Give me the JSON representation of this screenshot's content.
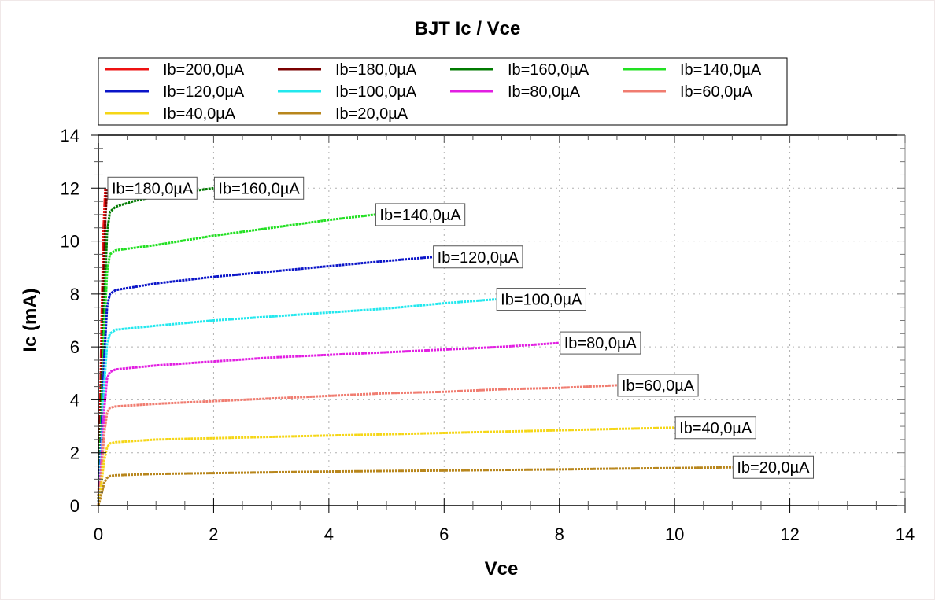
{
  "chart_data": {
    "type": "line",
    "title": "BJT Ic / Vce",
    "xlabel": "Vce",
    "ylabel": "Ic (mA)",
    "xlim": [
      0,
      14
    ],
    "ylim": [
      0,
      14
    ],
    "xticks": [
      0,
      2,
      4,
      6,
      8,
      10,
      12,
      14
    ],
    "yticks": [
      0,
      2,
      4,
      6,
      8,
      10,
      12,
      14
    ],
    "grid": true,
    "legend_placement": "top",
    "series": [
      {
        "name": "Ib=200,0µA",
        "color": "#ee1111",
        "annotation": "",
        "x": [
          0,
          0.03,
          0.06,
          0.09,
          0.12
        ],
        "y": [
          0,
          3.5,
          7.5,
          10.5,
          12.0
        ]
      },
      {
        "name": "Ib=180,0µA",
        "color": "#7a0000",
        "annotation": "Ib=180,0µA",
        "x": [
          0,
          0.04,
          0.08,
          0.12,
          0.15
        ],
        "y": [
          0,
          3.5,
          7.5,
          10.8,
          12.0
        ]
      },
      {
        "name": "Ib=160,0µA",
        "color": "#007a00",
        "annotation": "Ib=160,0µA",
        "x": [
          0,
          0.05,
          0.1,
          0.15,
          0.2,
          0.3,
          0.6,
          1.0,
          1.5,
          2.0
        ],
        "y": [
          0,
          3.5,
          7.5,
          10.3,
          11.1,
          11.3,
          11.5,
          11.7,
          11.85,
          12.0
        ]
      },
      {
        "name": "Ib=140,0µA",
        "color": "#22e022",
        "annotation": "Ib=140,0µA",
        "x": [
          0,
          0.05,
          0.1,
          0.15,
          0.2,
          0.3,
          1.0,
          2.0,
          3.0,
          4.0,
          4.8
        ],
        "y": [
          0,
          3.0,
          6.5,
          8.8,
          9.5,
          9.65,
          9.85,
          10.2,
          10.5,
          10.8,
          11.0
        ]
      },
      {
        "name": "Ib=120,0µA",
        "color": "#0a14c8",
        "annotation": "Ib=120,0µA",
        "x": [
          0,
          0.05,
          0.1,
          0.15,
          0.2,
          0.3,
          1.0,
          2.0,
          3.0,
          4.0,
          5.0,
          5.8
        ],
        "y": [
          0,
          2.5,
          5.5,
          7.5,
          8.0,
          8.15,
          8.4,
          8.65,
          8.85,
          9.05,
          9.25,
          9.4
        ]
      },
      {
        "name": "Ib=100,0µA",
        "color": "#22e8ee",
        "annotation": "Ib=100,0µA",
        "x": [
          0,
          0.05,
          0.1,
          0.15,
          0.2,
          0.3,
          1.0,
          2.0,
          3.0,
          4.0,
          5.0,
          6.0,
          6.9
        ],
        "y": [
          0,
          2.0,
          4.5,
          6.1,
          6.5,
          6.65,
          6.8,
          7.0,
          7.15,
          7.3,
          7.45,
          7.65,
          7.8
        ]
      },
      {
        "name": "Ib=80,0µA",
        "color": "#e21ee2",
        "annotation": "Ib=80,0µA",
        "x": [
          0,
          0.05,
          0.1,
          0.15,
          0.2,
          0.3,
          1.0,
          2.0,
          3.0,
          4.0,
          5.0,
          6.0,
          7.0,
          8.0
        ],
        "y": [
          0,
          1.6,
          3.6,
          4.8,
          5.05,
          5.15,
          5.3,
          5.45,
          5.6,
          5.7,
          5.8,
          5.9,
          6.0,
          6.15
        ]
      },
      {
        "name": "Ib=60,0µA",
        "color": "#f07c70",
        "annotation": "Ib=60,0µA",
        "x": [
          0,
          0.05,
          0.1,
          0.15,
          0.2,
          0.3,
          1.0,
          2.0,
          3.0,
          4.0,
          5.0,
          6.0,
          7.0,
          8.0,
          9.0
        ],
        "y": [
          0,
          1.2,
          2.7,
          3.5,
          3.7,
          3.75,
          3.85,
          3.95,
          4.05,
          4.15,
          4.25,
          4.3,
          4.4,
          4.45,
          4.55
        ]
      },
      {
        "name": "Ib=40,0µA",
        "color": "#f5d616",
        "annotation": "Ib=40,0µA",
        "x": [
          0,
          0.05,
          0.1,
          0.15,
          0.2,
          0.3,
          1.0,
          2.0,
          3.0,
          4.0,
          5.0,
          6.0,
          7.0,
          8.0,
          9.0,
          10.0
        ],
        "y": [
          0,
          0.8,
          1.7,
          2.2,
          2.35,
          2.4,
          2.5,
          2.55,
          2.6,
          2.65,
          2.7,
          2.75,
          2.8,
          2.85,
          2.9,
          2.95
        ]
      },
      {
        "name": "Ib=20,0µA",
        "color": "#b8861c",
        "annotation": "Ib=20,0µA",
        "x": [
          0,
          0.05,
          0.1,
          0.15,
          0.2,
          0.3,
          1.0,
          2.0,
          3.0,
          4.0,
          5.0,
          6.0,
          7.0,
          8.0,
          9.0,
          10.0,
          11.0
        ],
        "y": [
          0,
          0.4,
          0.85,
          1.05,
          1.12,
          1.15,
          1.2,
          1.23,
          1.26,
          1.29,
          1.31,
          1.33,
          1.35,
          1.37,
          1.4,
          1.42,
          1.45
        ]
      }
    ]
  }
}
